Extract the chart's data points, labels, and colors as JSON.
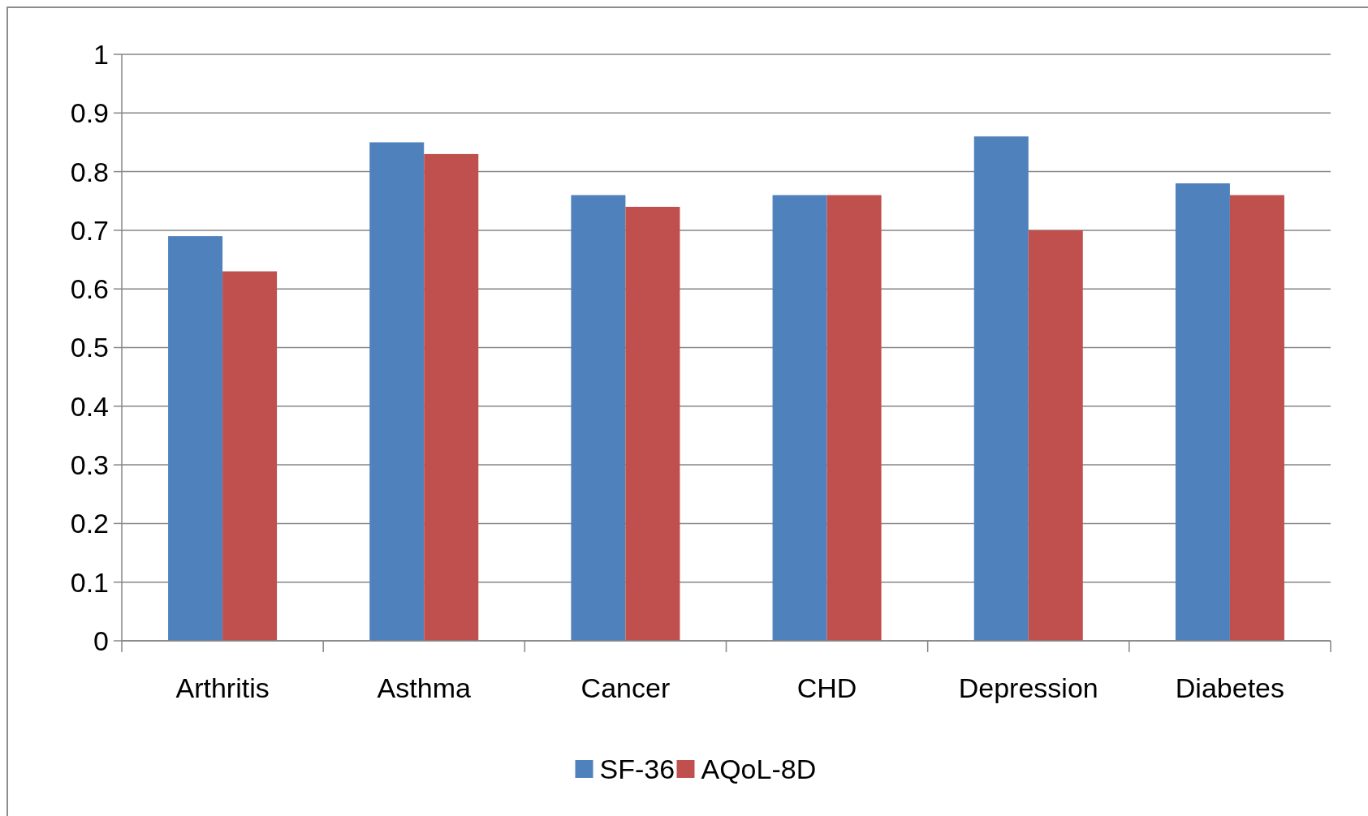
{
  "chart_data": {
    "type": "bar",
    "categories": [
      "Arthritis",
      "Asthma",
      "Cancer",
      "CHD",
      "Depression",
      "Diabetes"
    ],
    "series": [
      {
        "name": "SF-36",
        "color": "#4f81bd",
        "values": [
          0.69,
          0.85,
          0.76,
          0.76,
          0.86,
          0.78
        ]
      },
      {
        "name": "AQoL-8D",
        "color": "#c0504d",
        "values": [
          0.63,
          0.83,
          0.74,
          0.76,
          0.7,
          0.76
        ]
      }
    ],
    "ylim": [
      0,
      1
    ],
    "yticks": [
      0,
      0.1,
      0.2,
      0.3,
      0.4,
      0.5,
      0.6,
      0.7,
      0.8,
      0.9,
      1
    ],
    "grid": "y",
    "legend": "bottom"
  }
}
